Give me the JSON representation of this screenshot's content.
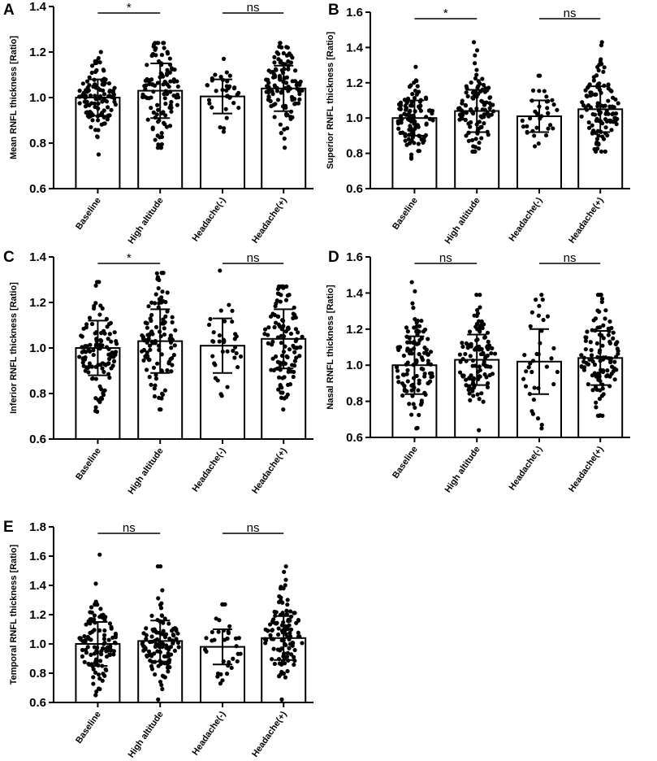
{
  "chart_data": [
    {
      "panel_label": "A",
      "type": "bar",
      "ylabel": "Mean RNFL thickness [Ratio]",
      "ylim": [
        0.6,
        1.4
      ],
      "yticks": [
        "0.6",
        "0.8",
        "1.0",
        "1.2",
        "1.4"
      ],
      "categories": [
        "Baseline",
        "High altitude",
        "Headache(-)",
        "Headache(+)"
      ],
      "values": [
        1.0,
        1.03,
        1.005,
        1.04
      ],
      "sd": [
        0.08,
        0.12,
        0.075,
        0.1
      ],
      "range": [
        [
          0.75,
          1.2
        ],
        [
          0.78,
          1.24
        ],
        [
          0.85,
          1.17
        ],
        [
          0.78,
          1.24
        ]
      ],
      "comparisons": [
        {
          "groups": [
            0,
            1
          ],
          "label": "*"
        },
        {
          "groups": [
            2,
            3
          ],
          "label": "ns"
        }
      ]
    },
    {
      "panel_label": "B",
      "type": "bar",
      "ylabel": "Superior RNFL thickness [Ratio]",
      "ylim": [
        0.6,
        1.6
      ],
      "yticks": [
        "0.6",
        "0.8",
        "1.0",
        "1.2",
        "1.4",
        "1.6"
      ],
      "categories": [
        "Baseline",
        "High altitude",
        "Headache(-)",
        "Headache(+)"
      ],
      "values": [
        1.0,
        1.04,
        1.01,
        1.05
      ],
      "sd": [
        0.1,
        0.12,
        0.09,
        0.13
      ],
      "range": [
        [
          0.77,
          1.29
        ],
        [
          0.81,
          1.43
        ],
        [
          0.84,
          1.24
        ],
        [
          0.81,
          1.43
        ]
      ],
      "comparisons": [
        {
          "groups": [
            0,
            1
          ],
          "label": "*"
        },
        {
          "groups": [
            2,
            3
          ],
          "label": "ns"
        }
      ]
    },
    {
      "panel_label": "C",
      "type": "bar",
      "ylabel": "Inferior RNFL thickness [Ratio]",
      "ylim": [
        0.6,
        1.4
      ],
      "yticks": [
        "0.6",
        "0.8",
        "1.0",
        "1.2",
        "1.4"
      ],
      "categories": [
        "Baseline",
        "High altitude",
        "Headache(-)",
        "Headache(+)"
      ],
      "values": [
        1.0,
        1.03,
        1.01,
        1.04
      ],
      "sd": [
        0.12,
        0.14,
        0.12,
        0.13
      ],
      "range": [
        [
          0.72,
          1.29
        ],
        [
          0.73,
          1.33
        ],
        [
          0.79,
          1.34
        ],
        [
          0.73,
          1.27
        ]
      ],
      "comparisons": [
        {
          "groups": [
            0,
            1
          ],
          "label": "*"
        },
        {
          "groups": [
            2,
            3
          ],
          "label": "ns"
        }
      ]
    },
    {
      "panel_label": "D",
      "type": "bar",
      "ylabel": "Nasal RNFL thickness [Ratio]",
      "ylim": [
        0.6,
        1.6
      ],
      "yticks": [
        "0.6",
        "0.8",
        "1.0",
        "1.2",
        "1.4",
        "1.6"
      ],
      "categories": [
        "Baseline",
        "High altitude",
        "Headache(-)",
        "Headache(+)"
      ],
      "values": [
        1.0,
        1.03,
        1.02,
        1.04
      ],
      "sd": [
        0.16,
        0.14,
        0.18,
        0.15
      ],
      "range": [
        [
          0.65,
          1.46
        ],
        [
          0.64,
          1.39
        ],
        [
          0.65,
          1.39
        ],
        [
          0.72,
          1.39
        ]
      ],
      "comparisons": [
        {
          "groups": [
            0,
            1
          ],
          "label": "ns"
        },
        {
          "groups": [
            2,
            3
          ],
          "label": "ns"
        }
      ]
    },
    {
      "panel_label": "E",
      "type": "bar",
      "ylabel": "Temporal RNFL thickness [Ratio]",
      "ylim": [
        0.6,
        1.8
      ],
      "yticks": [
        "0.6",
        "0.8",
        "1.0",
        "1.2",
        "1.4",
        "1.6",
        "1.8"
      ],
      "categories": [
        "Baseline",
        "High altitude",
        "Headache(-)",
        "Headache(+)"
      ],
      "values": [
        1.0,
        1.02,
        0.98,
        1.04
      ],
      "sd": [
        0.15,
        0.14,
        0.12,
        0.15
      ],
      "range": [
        [
          0.65,
          1.61
        ],
        [
          0.62,
          1.53
        ],
        [
          0.73,
          1.27
        ],
        [
          0.62,
          1.53
        ]
      ],
      "comparisons": [
        {
          "groups": [
            0,
            1
          ],
          "label": "ns"
        },
        {
          "groups": [
            2,
            3
          ],
          "label": "ns"
        }
      ]
    }
  ]
}
